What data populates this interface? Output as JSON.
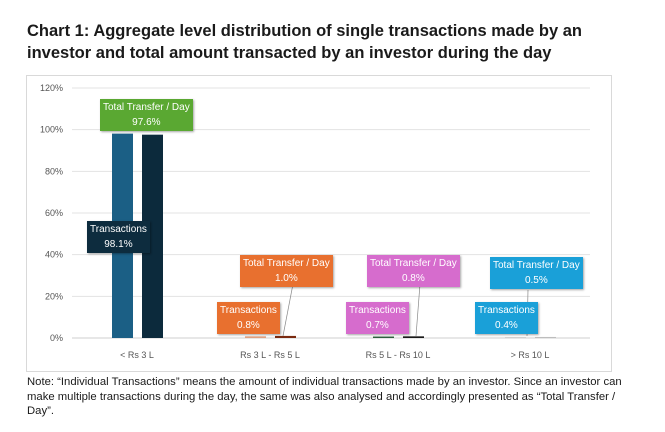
{
  "title": "Chart 1: Aggregate level distribution of single transactions made by an investor and total amount transacted by an investor during the day",
  "note": "Note: “Individual Transactions” means the amount of individual transactions made by an investor. Since an investor can make multiple transactions during the day, the same was also analysed and accordingly presented as “Total Transfer / Day”.",
  "chart_data": {
    "type": "bar",
    "categories": [
      "< Rs 3 L",
      "Rs 3 L - Rs 5 L",
      "Rs 5 L - Rs 10 L",
      "> Rs 10 L"
    ],
    "series": [
      {
        "name": "Transactions",
        "values": [
          98.1,
          0.8,
          0.7,
          0.4
        ]
      },
      {
        "name": "Total Transfer / Day",
        "values": [
          97.6,
          1.0,
          0.8,
          0.5
        ]
      }
    ],
    "data_labels": {
      "transactions": [
        "Transactions",
        "98.1%",
        "0.8%",
        "0.7%",
        "0.4%"
      ],
      "total": [
        "Total Transfer / Day",
        "97.6%",
        "1.0%",
        "0.8%",
        "0.5%"
      ]
    },
    "ylim": [
      0,
      120
    ],
    "yticks": [
      "0%",
      "20%",
      "40%",
      "60%",
      "80%",
      "100%",
      "120%"
    ],
    "grid": true,
    "colors": {
      "group_label_colors": [
        "#5aa832",
        "#e8702f",
        "#d66ccd",
        "#1aa0d8"
      ],
      "transactions_label_first": "#0d2c3e",
      "bar_light": [
        "#1b5f85",
        "#e0a080",
        "#2e5e3e",
        "#c8c8c8"
      ],
      "bar_dark": [
        "#0c2a3c",
        "#7a2a10",
        "#1a1a1a",
        "#bdbdbd"
      ]
    }
  }
}
